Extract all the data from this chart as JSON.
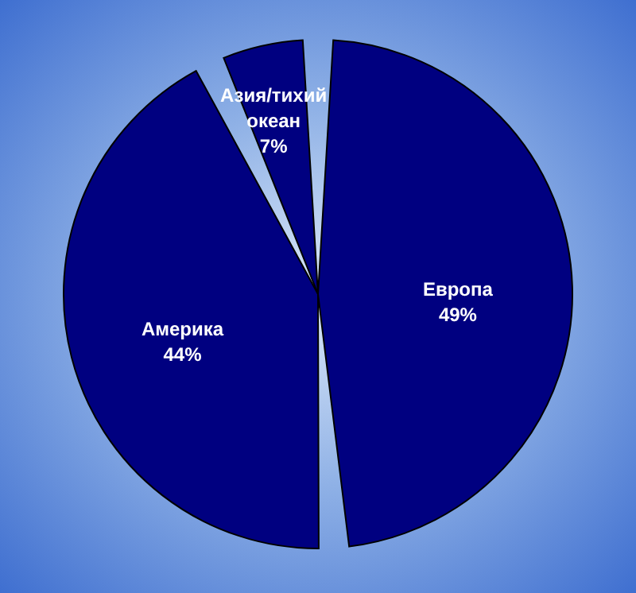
{
  "chart_data": {
    "type": "pie",
    "categories": [
      "Европа",
      "Америка",
      "Азия/тихий океан"
    ],
    "values": [
      49,
      44,
      7
    ],
    "colors": [
      "#000080",
      "#000080",
      "#000080"
    ],
    "value_labels": [
      "49%",
      "44%",
      "7%"
    ],
    "legend": false
  }
}
